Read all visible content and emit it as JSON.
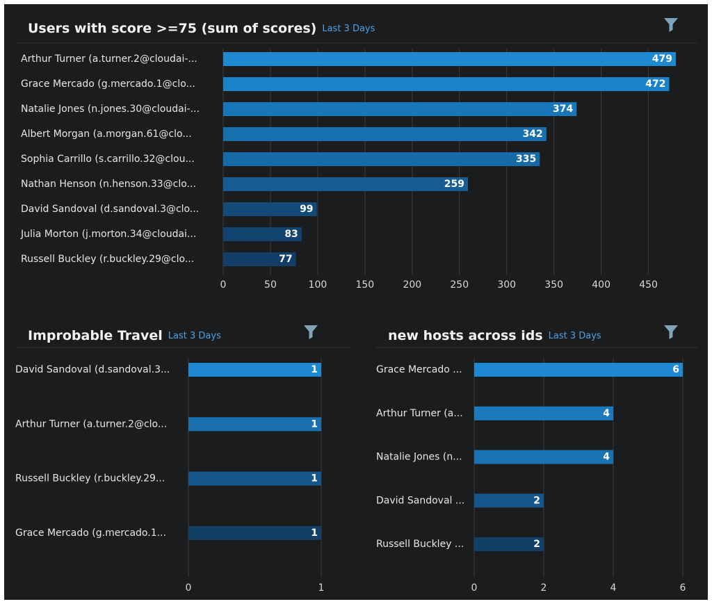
{
  "chart_data": [
    {
      "type": "hbar",
      "title": "Users with score >=75 (sum of scores)",
      "subtitle": "Last 3 Days",
      "categories": [
        "Arthur Turner (a.turner.2@cloudai-...",
        "Grace Mercado (g.mercado.1@clo...",
        "Natalie Jones (n.jones.30@cloudai-...",
        "Albert Morgan (a.morgan.61@clo...",
        "Sophia Carrillo (s.carrillo.32@clou...",
        "Nathan Henson (n.henson.33@clo...",
        "David Sandoval (d.sandoval.3@clo...",
        "Julia Morton (j.morton.34@cloudai...",
        "Russell Buckley (r.buckley.29@clo..."
      ],
      "values": [
        479,
        472,
        374,
        342,
        335,
        259,
        99,
        83,
        77
      ],
      "colors": [
        "#1e88d0",
        "#1a82c8",
        "#1877b9",
        "#176fae",
        "#166aa6",
        "#155d93",
        "#134a78",
        "#12436e",
        "#113d66"
      ],
      "xlim": [
        0,
        479
      ],
      "xticks": [
        0,
        50,
        100,
        150,
        200,
        250,
        300,
        350,
        400,
        450
      ],
      "grid": true
    },
    {
      "type": "hbar",
      "title": "Improbable Travel",
      "subtitle": "Last 3 Days",
      "categories": [
        "David Sandoval (d.sandoval.3...",
        "Arthur Turner (a.turner.2@clo...",
        "Russell Buckley (r.buckley.29...",
        "Grace Mercado (g.mercado.1..."
      ],
      "values": [
        1,
        1,
        1,
        1
      ],
      "colors": [
        "#1e88d0",
        "#1a70ad",
        "#15578a",
        "#113f66"
      ],
      "xlim": [
        0,
        1
      ],
      "xticks": [
        0,
        1
      ],
      "grid": true
    },
    {
      "type": "hbar",
      "title": "new hosts across ids",
      "subtitle": "Last 3 Days",
      "categories": [
        "Grace Mercado ...",
        "Arthur Turner (a...",
        "Natalie Jones (n...",
        "David Sandoval ...",
        "Russell Buckley ..."
      ],
      "values": [
        6,
        4,
        4,
        2,
        2
      ],
      "colors": [
        "#1e88d0",
        "#1b79bc",
        "#1a72b1",
        "#15578a",
        "#123f66"
      ],
      "xlim": [
        0,
        6
      ],
      "xticks": [
        0,
        2,
        4,
        6
      ],
      "grid": true
    }
  ]
}
